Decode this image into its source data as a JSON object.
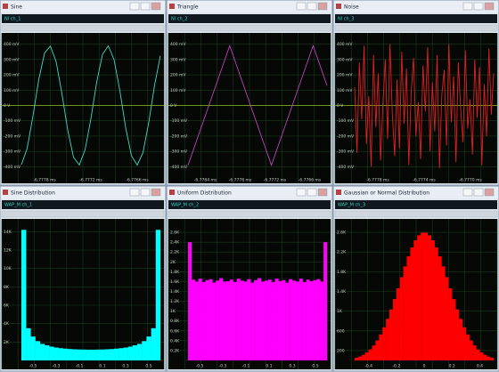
{
  "windows": [
    {
      "title": "Sine",
      "channel": "NI ch_1",
      "chart": {
        "type": "line",
        "color": "#3fd8c8",
        "ylim": [
          -450,
          450
        ],
        "yticks": [
          {
            "value": 400,
            "label": "400 mV"
          },
          {
            "value": 300,
            "label": "300 mV"
          },
          {
            "value": 200,
            "label": "200 mV"
          },
          {
            "value": 100,
            "label": "100 mV"
          },
          {
            "value": 0,
            "label": "0 V"
          },
          {
            "value": -100,
            "label": "-100 mV"
          },
          {
            "value": -200,
            "label": "-200 mV"
          },
          {
            "value": -300,
            "label": "-300 mV"
          },
          {
            "value": -400,
            "label": "-400 mV"
          }
        ],
        "xlabels": [
          "-6.7778 ms",
          "-6.7772 ms",
          "-6.7766 ms"
        ],
        "values": [
          -386,
          -280,
          -68,
          169,
          342,
          387,
          286,
          77,
          -161,
          -338,
          -388,
          -289,
          -87,
          152,
          333,
          389,
          299,
          97,
          -144,
          -328,
          -389,
          -307,
          -109,
          133,
          324
        ]
      }
    },
    {
      "title": "Triangle",
      "channel": "NI ch_2",
      "chart": {
        "type": "line",
        "color": "#c040c0",
        "ylim": [
          -450,
          450
        ],
        "yticks": [
          {
            "value": 400,
            "label": "400 mV"
          },
          {
            "value": 300,
            "label": "300 mV"
          },
          {
            "value": 200,
            "label": "200 mV"
          },
          {
            "value": 100,
            "label": "100 mV"
          },
          {
            "value": 0,
            "label": "0 V"
          },
          {
            "value": -100,
            "label": "-100 mV"
          },
          {
            "value": -200,
            "label": "-200 mV"
          },
          {
            "value": -300,
            "label": "-300 mV"
          },
          {
            "value": -400,
            "label": "-400 mV"
          }
        ],
        "xlabels": [
          "-6.7784 ms",
          "-6.7778 ms",
          "-6.7772 ms",
          "-6.7766 ms"
        ],
        "values": [
          -390,
          -130,
          130,
          390,
          130,
          -130,
          -390,
          -130,
          130,
          390,
          130
        ]
      }
    },
    {
      "title": "Noise",
      "channel": "NI ch_3",
      "chart": {
        "type": "line",
        "color": "#e02020",
        "ylim": [
          -450,
          450
        ],
        "yticks": [
          {
            "value": 400,
            "label": "400 mV"
          },
          {
            "value": 300,
            "label": "300 mV"
          },
          {
            "value": 200,
            "label": "200 mV"
          },
          {
            "value": 100,
            "label": "100 mV"
          },
          {
            "value": 0,
            "label": "0 V"
          },
          {
            "value": -100,
            "label": "-100 mV"
          },
          {
            "value": -200,
            "label": "-200 mV"
          },
          {
            "value": -300,
            "label": "-300 mV"
          },
          {
            "value": -400,
            "label": "-400 mV"
          }
        ],
        "xlabels": [
          "-6.7778 ms",
          "-6.7774 ms",
          "-6.7770 ms"
        ],
        "values": [
          120,
          -310,
          280,
          -90,
          390,
          -250,
          60,
          -400,
          330,
          -140,
          210,
          -360,
          10,
          300,
          -220,
          400,
          -60,
          -330,
          170,
          -280,
          350,
          -120,
          240,
          -390,
          90,
          310,
          -200,
          20,
          -350,
          260,
          -40,
          380,
          -300,
          150,
          -170,
          330,
          -410,
          70,
          230,
          -260,
          400,
          -110,
          190,
          -370,
          280,
          -20,
          -240,
          360,
          -150,
          40,
          -320,
          300,
          -80,
          250,
          -390,
          140,
          -200,
          370,
          -60,
          210
        ]
      }
    },
    {
      "title": "Sine Distribution",
      "channel": "WAP_M ch_1",
      "chart": {
        "type": "histogram",
        "color": "#00ffff",
        "ylim": [
          0,
          15000
        ],
        "yticks": [
          {
            "value": 2000,
            "label": "2K"
          },
          {
            "value": 4000,
            "label": "4K"
          },
          {
            "value": 6000,
            "label": "6K"
          },
          {
            "value": 8000,
            "label": "8K"
          },
          {
            "value": 10000,
            "label": "10K"
          },
          {
            "value": 12000,
            "label": "12K"
          },
          {
            "value": 14000,
            "label": "14K"
          }
        ],
        "xlabels": [
          "-0.5",
          "-0.3",
          "-0.1",
          "0.1",
          "0.3",
          "0.5"
        ],
        "values": [
          14200,
          3500,
          2600,
          2100,
          1800,
          1650,
          1500,
          1400,
          1330,
          1280,
          1240,
          1210,
          1190,
          1180,
          1170,
          1170,
          1180,
          1190,
          1210,
          1240,
          1280,
          1330,
          1400,
          1500,
          1650,
          1800,
          2100,
          2600,
          3500,
          14200
        ]
      }
    },
    {
      "title": "Uniform Distribution",
      "channel": "WAP_M ch_2",
      "chart": {
        "type": "histogram",
        "color": "#ff00ff",
        "ylim": [
          0,
          2800
        ],
        "yticks": [
          {
            "value": 200,
            "label": "0.2K"
          },
          {
            "value": 400,
            "label": "0.4K"
          },
          {
            "value": 600,
            "label": "0.6K"
          },
          {
            "value": 800,
            "label": "0.8K"
          },
          {
            "value": 1000,
            "label": "1K"
          },
          {
            "value": 1200,
            "label": "1.2K"
          },
          {
            "value": 1400,
            "label": "1.4K"
          },
          {
            "value": 1600,
            "label": "1.6K"
          },
          {
            "value": 1800,
            "label": "1.8K"
          },
          {
            "value": 2000,
            "label": "2K"
          },
          {
            "value": 2200,
            "label": "2.2K"
          },
          {
            "value": 2400,
            "label": "2.4K"
          },
          {
            "value": 2600,
            "label": "2.6K"
          }
        ],
        "xlabels": [
          "-0.5",
          "-0.3",
          "-0.1",
          "0.1",
          "0.3",
          "0.5"
        ],
        "values": [
          2400,
          1640,
          1600,
          1660,
          1590,
          1630,
          1650,
          1580,
          1620,
          1670,
          1600,
          1610,
          1640,
          1590,
          1660,
          1620,
          1600,
          1650,
          1580,
          1630,
          1670,
          1600,
          1620,
          1640,
          1590,
          1660,
          1610,
          1630,
          1580,
          1650,
          1620,
          1600,
          1660,
          1590,
          1640,
          1610,
          1630,
          1650,
          1600,
          2400
        ]
      }
    },
    {
      "title": "Gaussian or Normal Distribution",
      "channel": "WAP_M ch_3",
      "chart": {
        "type": "histogram",
        "color": "#ff0000",
        "ylim": [
          0,
          2800
        ],
        "yticks": [
          200,
          600,
          {
            "value": 1000,
            "label": "1K"
          },
          {
            "value": 1400,
            "label": "1.4K"
          },
          {
            "value": 1800,
            "label": "1.8K"
          },
          {
            "value": 2200,
            "label": "2.2K"
          },
          {
            "value": 2600,
            "label": "2.6K"
          }
        ],
        "xlabels": [
          "-0.4",
          "-0.2",
          "0",
          "0.2",
          "0.4"
        ],
        "values": [
          53,
          79,
          114,
          162,
          224,
          304,
          406,
          528,
          673,
          845,
          1035,
          1245,
          1464,
          1690,
          1908,
          2114,
          2293,
          2439,
          2540,
          2592,
          2592,
          2540,
          2439,
          2293,
          2114,
          1908,
          1690,
          1464,
          1245,
          1035,
          845,
          673,
          528,
          406,
          304,
          224,
          162,
          114,
          79,
          53
        ]
      }
    }
  ]
}
